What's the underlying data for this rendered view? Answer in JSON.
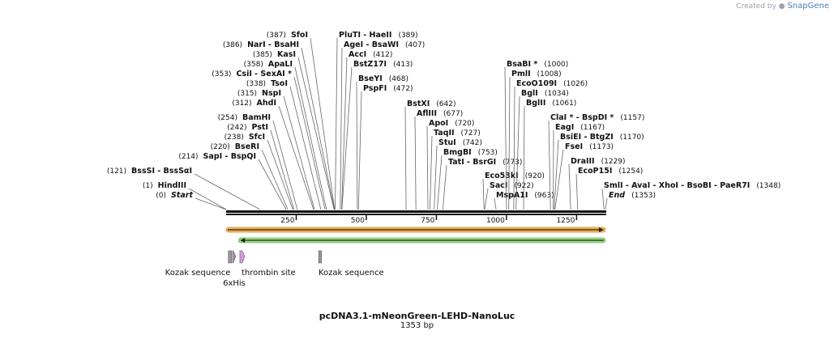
{
  "header": {
    "created_by": "Created by",
    "brand": "SnapGene"
  },
  "plasmid": {
    "name": "pcDNA3.1-mNeonGreen-LEHD-NanoLuc",
    "length_label": "1353 bp",
    "length": 1353
  },
  "ruler": {
    "ticks": [
      "250",
      "500",
      "750",
      "1000",
      "1250"
    ]
  },
  "sites": [
    {
      "label": "SfoI",
      "pos_text": "(387)"
    },
    {
      "label": "PluTI - HaeII",
      "pos_text": "(389)"
    },
    {
      "label": "NarI - BsaHI",
      "pos_text": "(386)"
    },
    {
      "label": "AgeI - BsaWI",
      "pos_text": "(407)"
    },
    {
      "label": "KasI",
      "pos_text": "(385)"
    },
    {
      "label": "AccI",
      "pos_text": "(412)"
    },
    {
      "label": "ApaLI",
      "pos_text": "(358)"
    },
    {
      "label": "BstZ17I",
      "pos_text": "(413)"
    },
    {
      "label": "CsiI - SexAI *",
      "pos_text": "(353)"
    },
    {
      "label": "TsoI",
      "pos_text": "(338)"
    },
    {
      "label": "BseYI",
      "pos_text": "(468)"
    },
    {
      "label": "NspI",
      "pos_text": "(315)"
    },
    {
      "label": "PspFI",
      "pos_text": "(472)"
    },
    {
      "label": "AhdI",
      "pos_text": "(312)"
    },
    {
      "label": "BamHI",
      "pos_text": "(254)"
    },
    {
      "label": "PstI",
      "pos_text": "(242)"
    },
    {
      "label": "SfcI",
      "pos_text": "(238)"
    },
    {
      "label": "BseRI",
      "pos_text": "(220)"
    },
    {
      "label": "SapI - BspQI",
      "pos_text": "(214)"
    },
    {
      "label": "BssSI - BssSαI",
      "pos_text": "(121)"
    },
    {
      "label": "HindIII",
      "pos_text": "(1)"
    },
    {
      "label": "Start",
      "pos_text": "(0)"
    },
    {
      "label": "BstXI",
      "pos_text": "(642)"
    },
    {
      "label": "AflIII",
      "pos_text": "(677)"
    },
    {
      "label": "ApoI",
      "pos_text": "(720)"
    },
    {
      "label": "TaqII",
      "pos_text": "(727)"
    },
    {
      "label": "StuI",
      "pos_text": "(742)"
    },
    {
      "label": "BmgBI",
      "pos_text": "(753)"
    },
    {
      "label": "TatI - BsrGI",
      "pos_text": "(773)"
    },
    {
      "label": "Eco53kI",
      "pos_text": "(920)"
    },
    {
      "label": "SacI",
      "pos_text": "(922)"
    },
    {
      "label": "MspA1I",
      "pos_text": "(963)"
    },
    {
      "label": "BsaBI *",
      "pos_text": "(1000)"
    },
    {
      "label": "PmlI",
      "pos_text": "(1008)"
    },
    {
      "label": "EcoO109I",
      "pos_text": "(1026)"
    },
    {
      "label": "BglI",
      "pos_text": "(1034)"
    },
    {
      "label": "BglII",
      "pos_text": "(1061)"
    },
    {
      "label": "ClaI * - BspDI *",
      "pos_text": "(1157)"
    },
    {
      "label": "EagI",
      "pos_text": "(1167)"
    },
    {
      "label": "BsiEI - BtgZI",
      "pos_text": "(1170)"
    },
    {
      "label": "FseI",
      "pos_text": "(1173)"
    },
    {
      "label": "DraIII",
      "pos_text": "(1229)"
    },
    {
      "label": "EcoP15I",
      "pos_text": "(1254)"
    },
    {
      "label": "SmlI - AvaI - XhoI - BsoBI - PaeR7I",
      "pos_text": "(1348)"
    },
    {
      "label": "End",
      "pos_text": "(1353)"
    }
  ],
  "features": [
    {
      "label": "Kozak sequence",
      "start": 9,
      "end": 19
    },
    {
      "label": "6xHis",
      "start": 24,
      "end": 34
    },
    {
      "label": "thrombin site",
      "start": 50,
      "end": 66
    },
    {
      "label": "Kozak sequence",
      "start": 331,
      "end": 340
    }
  ],
  "orfs": [
    {
      "name": "forward ORF",
      "start": 1,
      "end": 1353,
      "direction": "forward"
    },
    {
      "name": "reverse ORF",
      "start": 45,
      "end": 1353,
      "direction": "reverse"
    }
  ],
  "colors": {
    "backbone": "#111111",
    "orf_forward_fill": "#f6b35a",
    "orf_forward_stroke": "#d9921e",
    "orf_reverse_fill": "#9fe08a",
    "orf_reverse_stroke": "#5fb84a",
    "feature_kozak": "#9a9a9a",
    "feature_his": "#b48ab4",
    "feature_thrombin": "#d99ad9"
  }
}
